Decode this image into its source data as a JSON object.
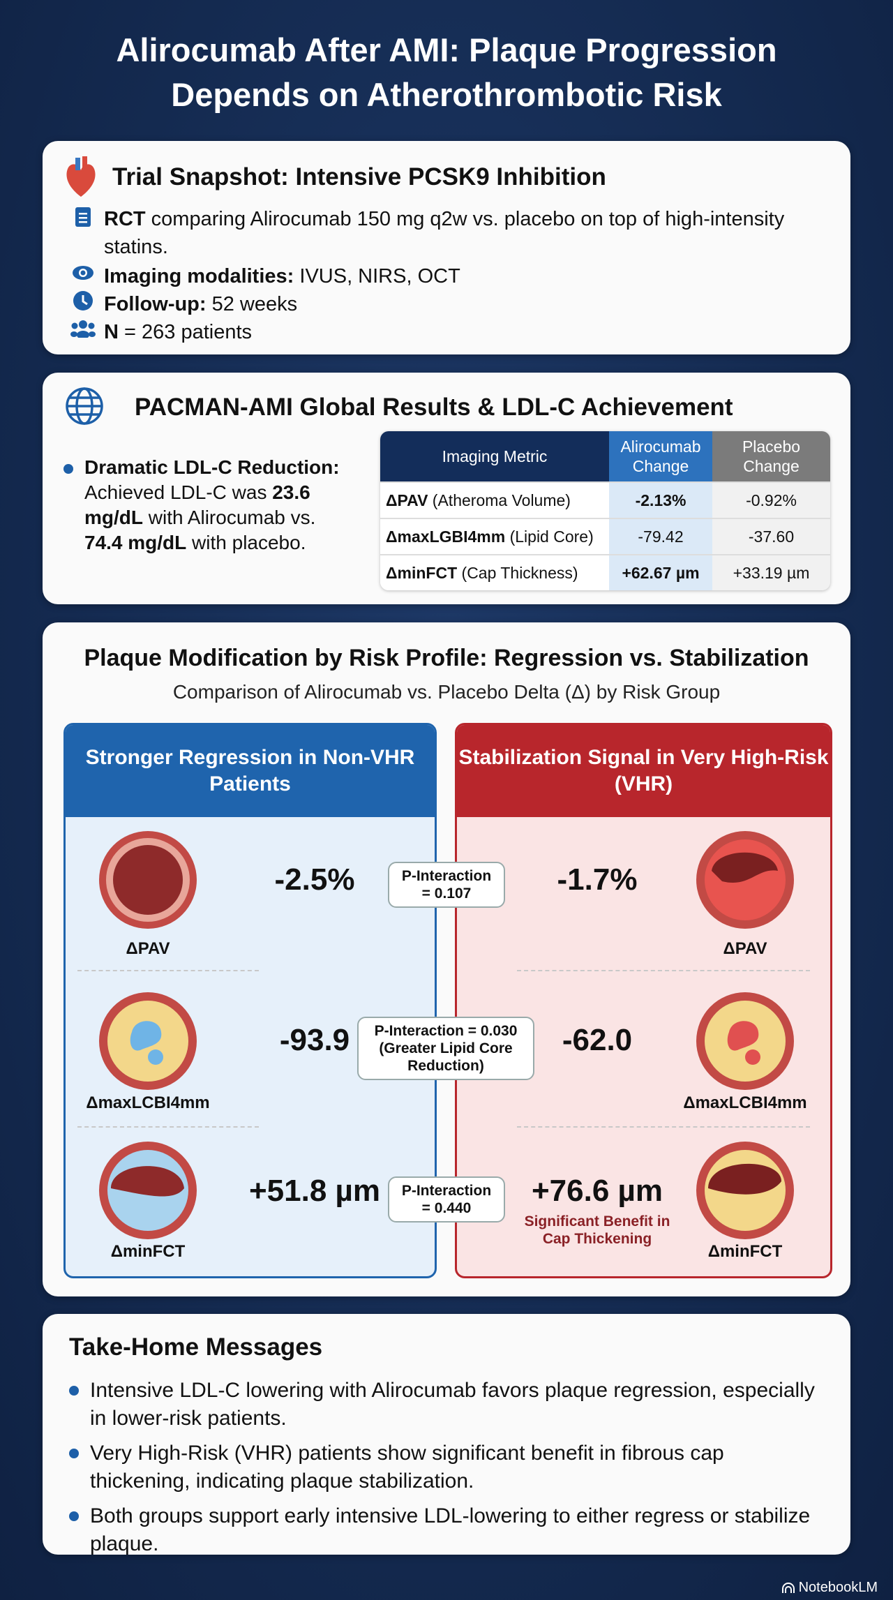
{
  "title": {
    "line1": "Alirocumab After AMI: Plaque Progression",
    "line2": "Depends on Atherothrombotic Risk"
  },
  "snapshot": {
    "title": "Trial Snapshot: Intensive PCSK9 Inhibition",
    "items": [
      {
        "icon": "clipboard-icon",
        "bold": "RCT",
        "text": " comparing Alirocumab 150 mg q2w vs. placebo on top of high-intensity statins."
      },
      {
        "icon": "eye-icon",
        "bold": "Imaging modalities:",
        "text": " IVUS, NIRS, OCT"
      },
      {
        "icon": "clock-icon",
        "bold": "Follow-up:",
        "text": " 52 weeks"
      },
      {
        "icon": "people-icon",
        "bold": "N",
        "text": " = 263 patients"
      }
    ]
  },
  "global": {
    "title": "PACMAN-AMI Global Results & LDL-C Achievement",
    "bullet": {
      "bold": "Dramatic LDL-C Reduction:",
      "t1": " Achieved LDL-C was ",
      "v1": "23.6 mg/dL",
      "t2": " with Alirocumab vs. ",
      "v2": "74.4 mg/dL",
      "t3": " with placebo."
    },
    "table": {
      "headers": [
        "Imaging Metric",
        "Alirocumab Change",
        "Placebo Change"
      ],
      "rows": [
        {
          "metric": "ΔPAV",
          "desc": " (Atheroma Volume)",
          "alirocumab": "-2.13%",
          "placebo": "-0.92%"
        },
        {
          "metric": "ΔmaxLGBI4mm",
          "desc": " (Lipid Core)",
          "alirocumab": "-79.42",
          "placebo": "-37.60"
        },
        {
          "metric": "ΔminFCT",
          "desc": " (Cap Thickness)",
          "alirocumab": "+62.67 µm",
          "placebo": "+33.19 µm"
        }
      ]
    }
  },
  "risk": {
    "title": "Plaque Modification by Risk Profile: Regression vs. Stabilization",
    "subtitle": "Comparison of Alirocumab vs. Placebo Delta (Δ) by Risk Group",
    "left": {
      "header": "Stronger Regression in Non-VHR Patients",
      "color": "#1f64ad",
      "rows": [
        {
          "label": "ΔPAV",
          "value": "-2.5%"
        },
        {
          "label": "ΔmaxLCBI4mm",
          "value": "-93.9"
        },
        {
          "label": "ΔminFCT",
          "value": "+51.8 µm"
        }
      ]
    },
    "right": {
      "header": "Stabilization Signal in Very High-Risk (VHR)",
      "color": "#b8262c",
      "rows": [
        {
          "label": "ΔPAV",
          "value": "-1.7%"
        },
        {
          "label": "ΔmaxLCBI4mm",
          "value": "-62.0"
        },
        {
          "label": "ΔminFCT",
          "value": "+76.6 µm",
          "note": "Significant Benefit in Cap Thickening"
        }
      ]
    },
    "p": [
      "P-Interaction = 0.107",
      "P-Interaction = 0.030 (Greater Lipid Core Reduction)",
      "P-Interaction = 0.440"
    ]
  },
  "takehome": {
    "title": "Take-Home Messages",
    "items": [
      "Intensive LDL-C lowering with Alirocumab favors plaque regression, especially in lower-risk patients.",
      "Very High-Risk (VHR) patients show significant benefit in fibrous cap thickening, indicating plaque stabilization.",
      "Both groups support early intensive LDL-lowering to either regress or stabilize plaque."
    ]
  },
  "brand": "NotebookLM"
}
